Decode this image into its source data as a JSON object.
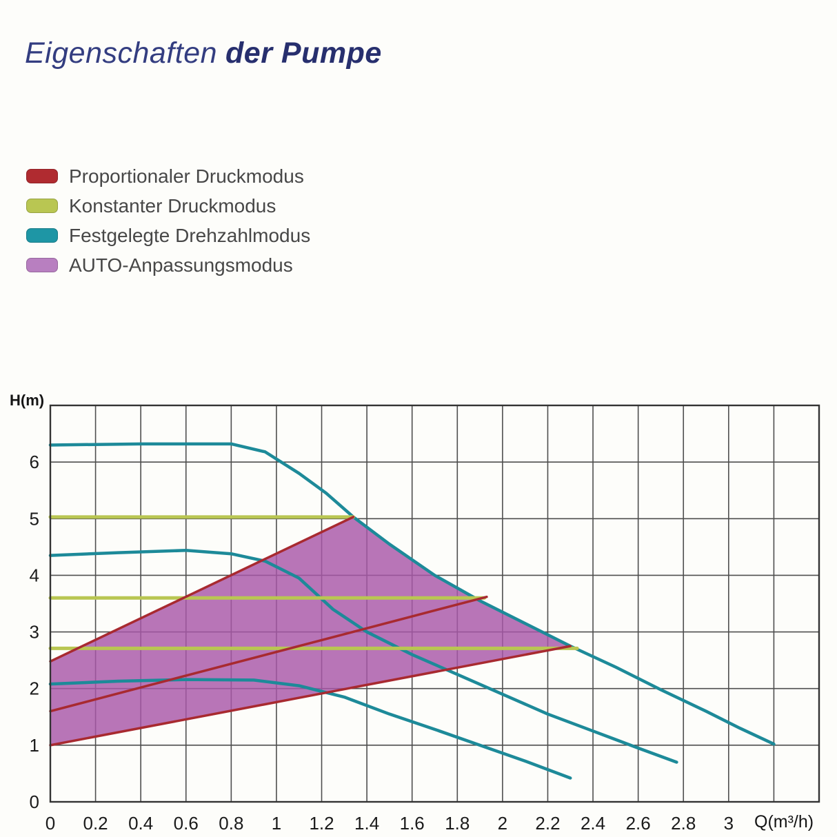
{
  "title": {
    "light": "Eigenschaften",
    "bold": "der Pumpe"
  },
  "legend": {
    "items": [
      {
        "label": "Proportionaler Druckmodus",
        "color": "#b02b30",
        "icon": "red-swatch-icon"
      },
      {
        "label": "Konstanter Druckmodus",
        "color": "#b9c652",
        "icon": "green-swatch-icon"
      },
      {
        "label": "Festgelegte Drehzahlmodus",
        "color": "#1e96a5",
        "icon": "teal-swatch-icon"
      },
      {
        "label": "AUTO-Anpassungsmodus",
        "color": "#b87fc0",
        "icon": "purple-swatch-icon"
      }
    ]
  },
  "chart_data": {
    "type": "line",
    "title": "",
    "xlabel": "Q(m³/h)",
    "ylabel": "H(m)",
    "xlim": [
      0,
      3.4
    ],
    "ylim": [
      0,
      7
    ],
    "x_grid_step": 0.2,
    "y_grid_step": 1,
    "grid": true,
    "legend_position": "top-left-outside",
    "colors": {
      "grid": "#4e4e4e",
      "border": "#333333",
      "tick_text": "#1b1b1b"
    },
    "x_ticks": [
      {
        "v": 0,
        "label": "0"
      },
      {
        "v": 0.2,
        "label": "0.2"
      },
      {
        "v": 0.4,
        "label": "0.4"
      },
      {
        "v": 0.6,
        "label": "0.6"
      },
      {
        "v": 0.8,
        "label": "0.8"
      },
      {
        "v": 1,
        "label": "1"
      },
      {
        "v": 1.2,
        "label": "1.2"
      },
      {
        "v": 1.4,
        "label": "1.4"
      },
      {
        "v": 1.6,
        "label": "1.6"
      },
      {
        "v": 1.8,
        "label": "1.8"
      },
      {
        "v": 2,
        "label": "2"
      },
      {
        "v": 2.2,
        "label": "2.2"
      },
      {
        "v": 2.4,
        "label": "2.4"
      },
      {
        "v": 2.6,
        "label": "2.6"
      },
      {
        "v": 2.8,
        "label": "2.8"
      },
      {
        "v": 3,
        "label": "3"
      }
    ],
    "y_ticks": [
      {
        "v": 0,
        "label": "0"
      },
      {
        "v": 1,
        "label": "1"
      },
      {
        "v": 2,
        "label": "2"
      },
      {
        "v": 3,
        "label": "3"
      },
      {
        "v": 4,
        "label": "4"
      },
      {
        "v": 5,
        "label": "5"
      },
      {
        "v": 6,
        "label": "6"
      }
    ],
    "series": [
      {
        "id": "fixed-speed-max",
        "name": "Festgelegte Drehzahl – Kurve max",
        "color": "#1d8a99",
        "width": 4.5,
        "points": [
          [
            0,
            6.3
          ],
          [
            0.4,
            6.32
          ],
          [
            0.8,
            6.32
          ],
          [
            0.95,
            6.18
          ],
          [
            1.1,
            5.8
          ],
          [
            1.22,
            5.45
          ],
          [
            1.34,
            5.03
          ],
          [
            1.5,
            4.55
          ],
          [
            1.7,
            4.0
          ],
          [
            1.9,
            3.55
          ],
          [
            2.1,
            3.15
          ],
          [
            2.3,
            2.75
          ],
          [
            2.5,
            2.38
          ],
          [
            2.7,
            1.98
          ],
          [
            2.9,
            1.6
          ],
          [
            3.05,
            1.3
          ],
          [
            3.2,
            1.02
          ]
        ]
      },
      {
        "id": "fixed-speed-mid",
        "name": "Festgelegte Drehzahl – Kurve mittel",
        "color": "#1d8a99",
        "width": 4.5,
        "points": [
          [
            0,
            4.35
          ],
          [
            0.3,
            4.4
          ],
          [
            0.6,
            4.44
          ],
          [
            0.8,
            4.38
          ],
          [
            0.95,
            4.25
          ],
          [
            1.1,
            3.95
          ],
          [
            1.25,
            3.4
          ],
          [
            1.4,
            3.0
          ],
          [
            1.6,
            2.6
          ],
          [
            1.8,
            2.25
          ],
          [
            2.0,
            1.9
          ],
          [
            2.2,
            1.55
          ],
          [
            2.4,
            1.25
          ],
          [
            2.6,
            0.95
          ],
          [
            2.77,
            0.7
          ]
        ]
      },
      {
        "id": "fixed-speed-min",
        "name": "Festgelegte Drehzahl – Kurve min",
        "color": "#1d8a99",
        "width": 4.5,
        "points": [
          [
            0,
            2.08
          ],
          [
            0.3,
            2.13
          ],
          [
            0.6,
            2.16
          ],
          [
            0.9,
            2.15
          ],
          [
            1.1,
            2.05
          ],
          [
            1.3,
            1.85
          ],
          [
            1.5,
            1.55
          ],
          [
            1.7,
            1.28
          ],
          [
            1.9,
            1.0
          ],
          [
            2.1,
            0.72
          ],
          [
            2.3,
            0.42
          ]
        ]
      },
      {
        "id": "constant-pressure-5",
        "name": "Konstanter Druck 5,0 m",
        "color": "#b9c652",
        "width": 5,
        "points": [
          [
            0,
            5.03
          ],
          [
            1.34,
            5.03
          ]
        ]
      },
      {
        "id": "constant-pressure-3-6",
        "name": "Konstanter Druck 3,6 m",
        "color": "#b9c652",
        "width": 5,
        "points": [
          [
            0,
            3.6
          ],
          [
            1.92,
            3.6
          ]
        ]
      },
      {
        "id": "constant-pressure-2-7",
        "name": "Konstanter Druck 2,7 m",
        "color": "#b9c652",
        "width": 5,
        "points": [
          [
            0,
            2.71
          ],
          [
            2.33,
            2.71
          ]
        ]
      },
      {
        "id": "proportional-pressure-upper",
        "name": "Proportionaler Druck – obere Kennlinie",
        "color": "#a82a30",
        "width": 3.5,
        "points": [
          [
            0,
            2.48
          ],
          [
            1.34,
            5.03
          ]
        ]
      },
      {
        "id": "proportional-pressure-middle",
        "name": "Proportionaler Druck – mittlere Kennlinie",
        "color": "#a82a30",
        "width": 3.5,
        "points": [
          [
            0,
            1.6
          ],
          [
            1.93,
            3.62
          ]
        ]
      },
      {
        "id": "proportional-pressure-lower",
        "name": "Proportionaler Druck – untere Kennlinie",
        "color": "#a82a30",
        "width": 3.5,
        "points": [
          [
            0,
            1.0
          ],
          [
            2.3,
            2.75
          ]
        ]
      }
    ],
    "area": {
      "id": "auto-adapt-area",
      "name": "AUTO-Anpassungsmodus",
      "color": "#a857a8",
      "opacity": 0.82,
      "polygon": [
        [
          0,
          1.0
        ],
        [
          0,
          2.48
        ],
        [
          1.34,
          5.03
        ],
        [
          1.5,
          4.55
        ],
        [
          1.7,
          4.0
        ],
        [
          1.9,
          3.55
        ],
        [
          2.1,
          3.15
        ],
        [
          2.3,
          2.75
        ]
      ]
    }
  }
}
